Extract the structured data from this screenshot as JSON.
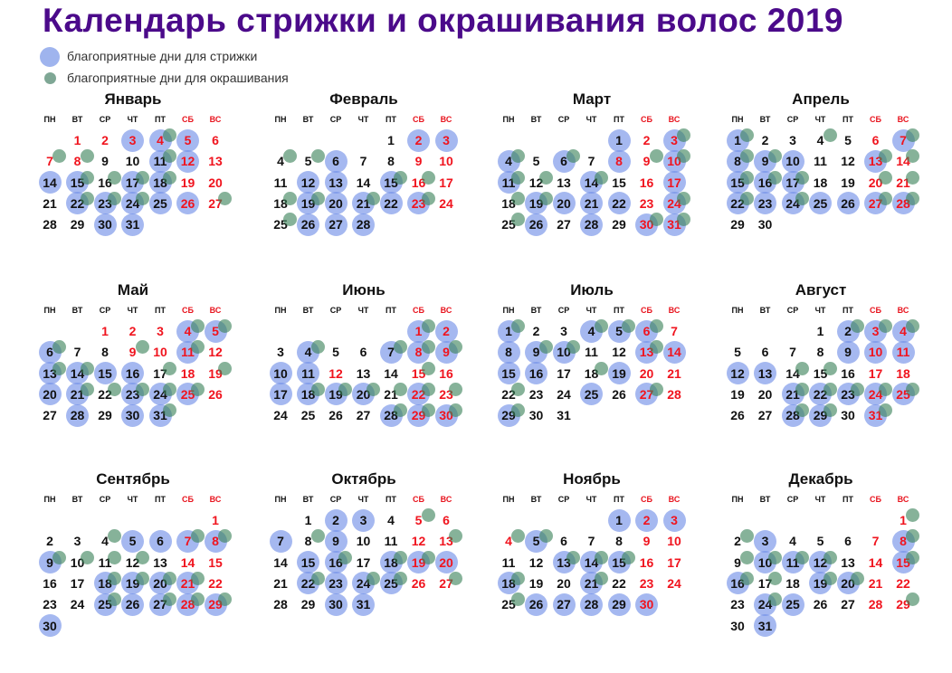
{
  "title": "Календарь стрижки и окрашивания волос 2019",
  "year": 2019,
  "legend": [
    {
      "label": "благоприятные дни для стрижки",
      "icon": "blue-circle",
      "color": "#9fb4ee"
    },
    {
      "label": "благоприятные дни для окрашивания",
      "icon": "green-dot",
      "color": "#7fa795"
    }
  ],
  "colors": {
    "title": "#4b0a8a",
    "weekend": "#f0141e",
    "haircut": "#6e8ce6",
    "coloring": "#3c825a"
  },
  "weekdays": [
    "ПН",
    "ВТ",
    "СР",
    "ЧТ",
    "ПТ",
    "СБ",
    "ВС"
  ],
  "months": [
    {
      "name": "Январь",
      "holidays": [
        1,
        2,
        3,
        4,
        5,
        6,
        7,
        8
      ],
      "haircut": [
        3,
        4,
        5,
        11,
        12,
        14,
        15,
        17,
        18,
        22,
        23,
        24,
        25,
        26,
        30,
        31
      ],
      "coloring": [
        4,
        7,
        8,
        11,
        15,
        16,
        17,
        18,
        22,
        23,
        24,
        27
      ]
    },
    {
      "name": "Февраль",
      "holidays": [],
      "haircut": [
        2,
        3,
        6,
        12,
        13,
        15,
        19,
        20,
        21,
        22,
        23,
        26,
        27,
        28
      ],
      "coloring": [
        4,
        5,
        15,
        16,
        18,
        19,
        21,
        23,
        25
      ]
    },
    {
      "name": "Март",
      "holidays": [
        8
      ],
      "haircut": [
        1,
        3,
        4,
        6,
        8,
        10,
        11,
        14,
        17,
        19,
        20,
        21,
        22,
        24,
        26,
        28,
        30,
        31
      ],
      "coloring": [
        3,
        4,
        6,
        9,
        10,
        11,
        12,
        14,
        18,
        19,
        24,
        25,
        30,
        31
      ]
    },
    {
      "name": "Апрель",
      "holidays": [],
      "haircut": [
        1,
        7,
        8,
        9,
        10,
        13,
        15,
        16,
        17,
        22,
        23,
        24,
        25,
        26,
        27,
        28
      ],
      "coloring": [
        1,
        4,
        7,
        8,
        9,
        13,
        14,
        15,
        16,
        17,
        20,
        21,
        22,
        24,
        27,
        28
      ]
    },
    {
      "name": "Май",
      "holidays": [
        1,
        2,
        3,
        9,
        10
      ],
      "haircut": [
        4,
        5,
        6,
        11,
        13,
        14,
        15,
        16,
        20,
        21,
        23,
        24,
        25,
        28,
        30,
        31
      ],
      "coloring": [
        4,
        5,
        6,
        9,
        11,
        13,
        14,
        17,
        19,
        21,
        22,
        23,
        24,
        25,
        31
      ]
    },
    {
      "name": "Июнь",
      "holidays": [
        12
      ],
      "haircut": [
        1,
        2,
        4,
        7,
        8,
        9,
        10,
        11,
        17,
        18,
        19,
        20,
        22,
        28,
        29,
        30
      ],
      "coloring": [
        1,
        4,
        7,
        8,
        9,
        15,
        18,
        19,
        20,
        21,
        22,
        23,
        28,
        29,
        30
      ]
    },
    {
      "name": "Июль",
      "holidays": [],
      "haircut": [
        1,
        4,
        5,
        6,
        8,
        9,
        10,
        13,
        14,
        15,
        16,
        19,
        25,
        27,
        29
      ],
      "coloring": [
        1,
        4,
        5,
        6,
        9,
        10,
        13,
        18,
        22,
        27,
        29
      ]
    },
    {
      "name": "Август",
      "holidays": [],
      "haircut": [
        2,
        3,
        4,
        9,
        10,
        11,
        12,
        13,
        21,
        22,
        23,
        24,
        25,
        28,
        29,
        31
      ],
      "coloring": [
        2,
        3,
        4,
        14,
        15,
        21,
        22,
        23,
        24,
        25,
        28,
        29,
        31
      ]
    },
    {
      "name": "Сентябрь",
      "holidays": [],
      "haircut": [
        5,
        6,
        7,
        8,
        9,
        18,
        19,
        20,
        21,
        25,
        26,
        27,
        28,
        29,
        30
      ],
      "coloring": [
        4,
        7,
        8,
        9,
        10,
        11,
        12,
        18,
        19,
        20,
        21,
        25,
        27,
        28,
        29
      ]
    },
    {
      "name": "Октябрь",
      "holidays": [],
      "haircut": [
        2,
        3,
        7,
        9,
        15,
        16,
        18,
        19,
        20,
        22,
        23,
        24,
        25,
        30,
        31
      ],
      "coloring": [
        5,
        8,
        13,
        16,
        18,
        19,
        22,
        24,
        25,
        27
      ]
    },
    {
      "name": "Ноябрь",
      "holidays": [
        4
      ],
      "haircut": [
        1,
        2,
        3,
        5,
        13,
        14,
        15,
        18,
        21,
        26,
        27,
        28,
        29,
        30
      ],
      "coloring": [
        4,
        5,
        13,
        14,
        15,
        18,
        21,
        25
      ]
    },
    {
      "name": "Декабрь",
      "holidays": [],
      "haircut": [
        3,
        8,
        10,
        11,
        12,
        15,
        16,
        19,
        20,
        24,
        25,
        31
      ],
      "coloring": [
        1,
        2,
        8,
        9,
        10,
        11,
        12,
        15,
        16,
        17,
        19,
        20,
        24,
        29
      ]
    }
  ]
}
